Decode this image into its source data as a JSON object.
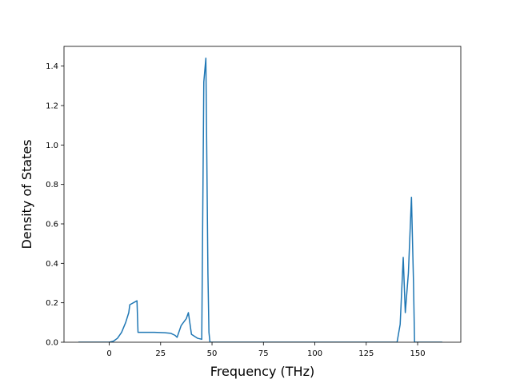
{
  "chart_data": {
    "type": "line",
    "title": "",
    "xlabel": "Frequency (THz)",
    "ylabel": "Density of States",
    "xlim": [
      -22,
      171
    ],
    "ylim": [
      0,
      1.5
    ],
    "xticks": [
      0,
      25,
      50,
      75,
      100,
      125,
      150
    ],
    "yticks": [
      0.0,
      0.2,
      0.4,
      0.6,
      0.8,
      1.0,
      1.2,
      1.4
    ],
    "xtick_labels": [
      "0",
      "25",
      "50",
      "75",
      "100",
      "125",
      "150"
    ],
    "ytick_labels": [
      "0.0",
      "0.2",
      "0.4",
      "0.6",
      "0.8",
      "1.0",
      "1.2",
      "1.4"
    ],
    "grid": false,
    "series": [
      {
        "color": "#1f77b4",
        "x": [
          -15,
          -5,
          0,
          2,
          4,
          6,
          8,
          9.5,
          10,
          13.5,
          14,
          17,
          22,
          27,
          30,
          32,
          33,
          35,
          37.5,
          38.5,
          40,
          43,
          45,
          46,
          47,
          48,
          48.5,
          49,
          55,
          100,
          140,
          141.5,
          143,
          144,
          145.5,
          147,
          148,
          148.5,
          155,
          162
        ],
        "y": [
          0,
          0,
          0,
          0.005,
          0.02,
          0.05,
          0.1,
          0.15,
          0.19,
          0.21,
          0.05,
          0.05,
          0.05,
          0.048,
          0.045,
          0.035,
          0.025,
          0.085,
          0.12,
          0.15,
          0.04,
          0.02,
          0.015,
          1.32,
          1.44,
          0.35,
          0.05,
          0,
          0,
          0,
          0,
          0.09,
          0.43,
          0.15,
          0.35,
          0.735,
          0.3,
          0,
          0,
          0
        ]
      }
    ]
  }
}
